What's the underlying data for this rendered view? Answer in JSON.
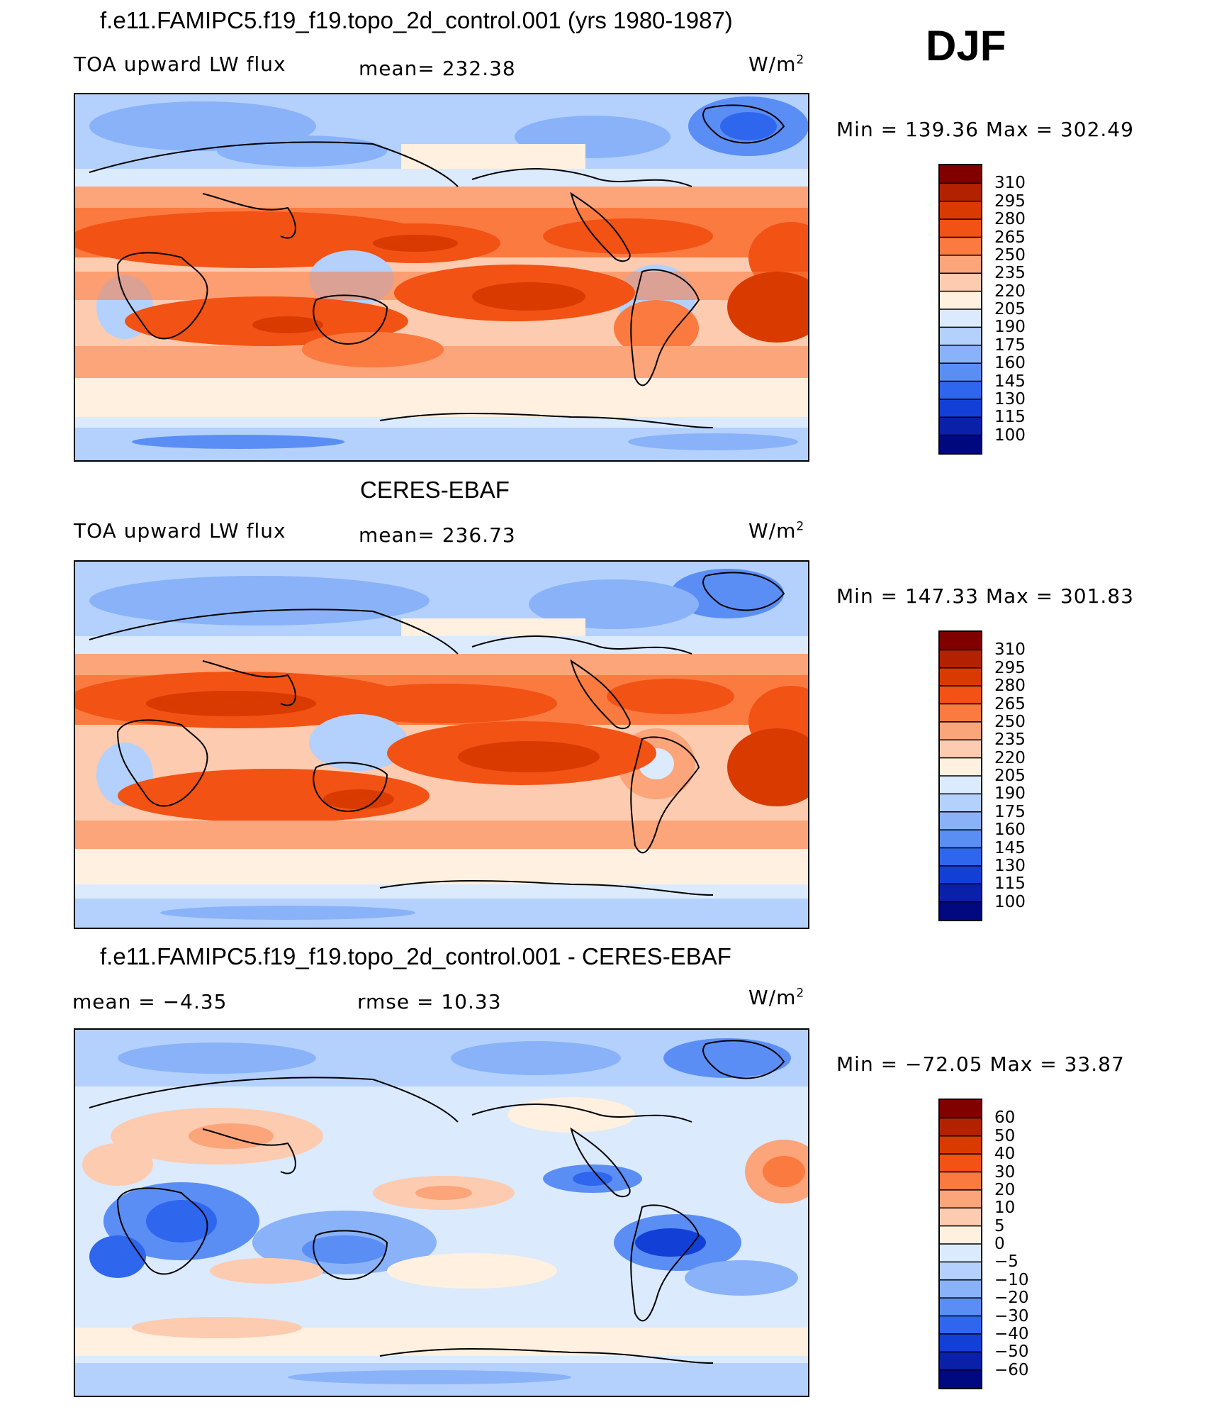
{
  "season": "DJF",
  "panels": [
    {
      "title": "f.e11.FAMIPC5.f19_f19.topo_2d_control.001 (yrs 1980-1987)",
      "left_label": "TOA upward LW flux",
      "stat_label": "mean= 232.38",
      "stat2_label": "",
      "units": "W/m",
      "units_sup": "2",
      "minmax": "Min  =  139.36  Max  =  302.49",
      "colorbar": {
        "levels": [
          "310",
          "295",
          "280",
          "265",
          "250",
          "235",
          "220",
          "205",
          "190",
          "175",
          "160",
          "145",
          "130",
          "115",
          "100"
        ],
        "colors": [
          "#800000",
          "#b32200",
          "#d93a00",
          "#f25214",
          "#fb7a40",
          "#fca47a",
          "#fdcbb0",
          "#fff0e0",
          "#dbeafd",
          "#b3d1fc",
          "#89b2f8",
          "#5b8ef5",
          "#2f66ee",
          "#1240d7",
          "#0a20a8",
          "#000880"
        ]
      }
    },
    {
      "title": "CERES-EBAF",
      "left_label": "TOA upward LW flux",
      "stat_label": "mean= 236.73",
      "stat2_label": "",
      "units": "W/m",
      "units_sup": "2",
      "minmax": "Min  =  147.33  Max  =  301.83",
      "colorbar": {
        "levels": [
          "310",
          "295",
          "280",
          "265",
          "250",
          "235",
          "220",
          "205",
          "190",
          "175",
          "160",
          "145",
          "130",
          "115",
          "100"
        ],
        "colors": [
          "#800000",
          "#b32200",
          "#d93a00",
          "#f25214",
          "#fb7a40",
          "#fca47a",
          "#fdcbb0",
          "#fff0e0",
          "#dbeafd",
          "#b3d1fc",
          "#89b2f8",
          "#5b8ef5",
          "#2f66ee",
          "#1240d7",
          "#0a20a8",
          "#000880"
        ]
      }
    },
    {
      "title": "f.e11.FAMIPC5.f19_f19.topo_2d_control.001 - CERES-EBAF",
      "left_label": "mean  =    −4.35",
      "stat_label": "",
      "stat2_label": "rmse  =    10.33",
      "units": "W/m",
      "units_sup": "2",
      "minmax": "Min  =  −72.05  Max  =    33.87",
      "colorbar": {
        "levels": [
          "60",
          "50",
          "40",
          "30",
          "20",
          "10",
          "5",
          "0",
          "−5",
          "−10",
          "−20",
          "−30",
          "−40",
          "−50",
          "−60"
        ],
        "colors": [
          "#800000",
          "#b32200",
          "#d93a00",
          "#f25214",
          "#fb7a40",
          "#fca47a",
          "#fdcbb0",
          "#fff0e0",
          "#dbeafd",
          "#b3d1fc",
          "#89b2f8",
          "#5b8ef5",
          "#2f66ee",
          "#1240d7",
          "#0a20a8",
          "#000880"
        ]
      }
    }
  ]
}
